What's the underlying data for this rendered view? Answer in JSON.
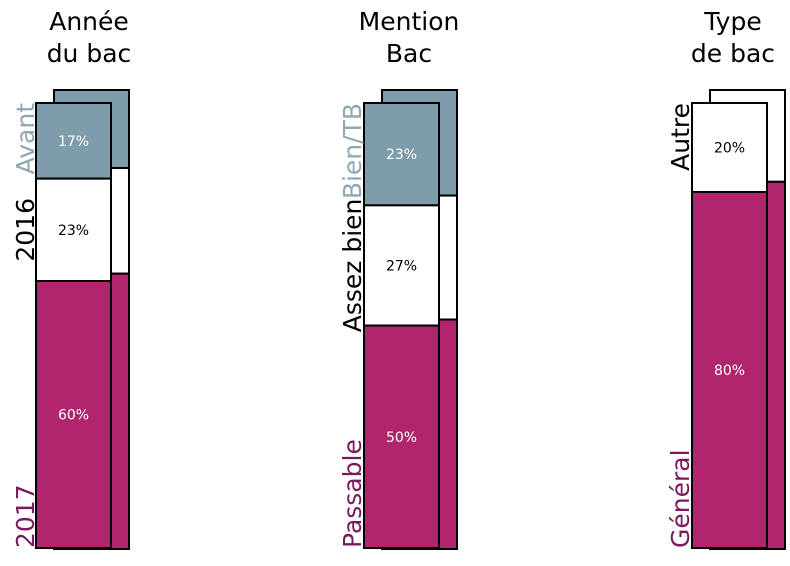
{
  "chart_data": [
    {
      "type": "stacked-bar",
      "title_lines": [
        "Année",
        "du bac"
      ],
      "series": [
        {
          "name": "Avant",
          "value": 17,
          "label": "17%",
          "color": "#7f9caa"
        },
        {
          "name": "2016",
          "value": 23,
          "label": "23%",
          "color": "#ffffff"
        },
        {
          "name": "2017",
          "value": 60,
          "label": "60%",
          "color": "#b0256c"
        }
      ],
      "comparison_stack": [
        17,
        23,
        60
      ]
    },
    {
      "type": "stacked-bar",
      "title_lines": [
        "Mention",
        "Bac"
      ],
      "series": [
        {
          "name": "Bien/TB",
          "value": 23,
          "label": "23%",
          "color": "#7f9caa"
        },
        {
          "name": "Assez bien",
          "value": 27,
          "label": "27%",
          "color": "#ffffff"
        },
        {
          "name": "Passable",
          "value": 50,
          "label": "50%",
          "color": "#b0256c"
        }
      ],
      "comparison_stack": [
        23,
        27,
        50
      ]
    },
    {
      "type": "stacked-bar",
      "title_lines": [
        "Type",
        "de bac"
      ],
      "series": [
        {
          "name": "Autre",
          "value": 20,
          "label": "20%",
          "color": "#ffffff"
        },
        {
          "name": "Général",
          "value": 80,
          "label": "80%",
          "color": "#b0256c"
        }
      ],
      "comparison_stack": [
        20,
        80
      ]
    }
  ],
  "colors": {
    "magenta": "#b0256c",
    "gray_blue": "#7f9caa",
    "white": "#ffffff",
    "label_gray": "#8fa8b4",
    "label_purple": "#7a1a5e",
    "outline": "#000000"
  }
}
